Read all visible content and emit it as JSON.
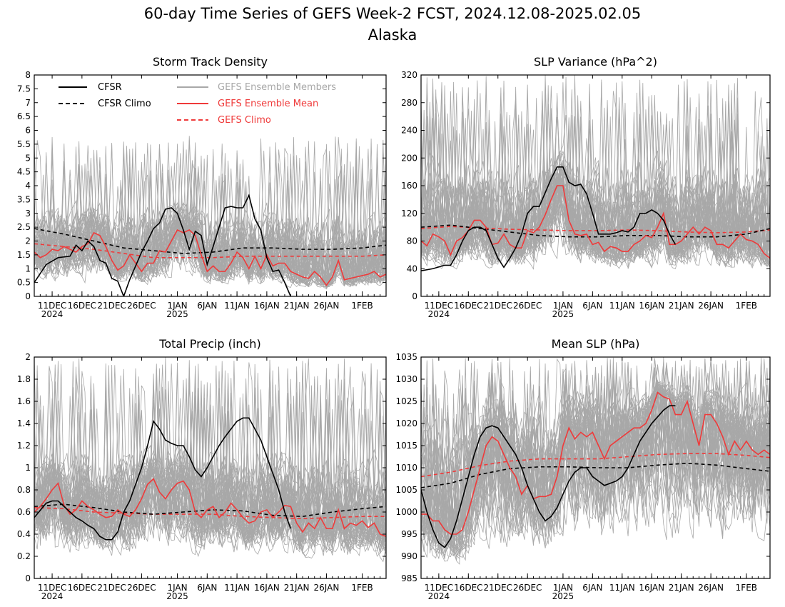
{
  "page": {
    "title_line1": "60-day Time Series of GEFS Week-2 FCST, 2024.12.08-2025.02.05",
    "title_line2": "Alaska"
  },
  "colors": {
    "members": "#a8a8a8",
    "ens_mean": "#ef3a3a",
    "gefs_climo": "#ef3a3a",
    "cfsr": "#000000",
    "cfsr_climo": "#000000"
  },
  "legend": {
    "cfsr": "CFSR",
    "cfsr_climo": "CFSR Climo",
    "members": "GEFS Ensemble Members",
    "ens_mean": "GEFS Ensemble Mean",
    "gefs_climo": "GEFS Climo"
  },
  "x_axis": {
    "ticks": [
      {
        "label": "11DEC",
        "sub": "2024",
        "day": 3
      },
      {
        "label": "16DEC",
        "day": 8
      },
      {
        "label": "21DEC",
        "day": 13
      },
      {
        "label": "26DEC",
        "day": 18
      },
      {
        "label": "1JAN",
        "sub": "2025",
        "day": 24
      },
      {
        "label": "6JAN",
        "day": 29
      },
      {
        "label": "11JAN",
        "day": 34
      },
      {
        "label": "16JAN",
        "day": 39
      },
      {
        "label": "21JAN",
        "day": 44
      },
      {
        "label": "26JAN",
        "day": 49
      },
      {
        "label": "1FEB",
        "day": 55
      }
    ]
  },
  "chart_data": [
    {
      "id": "storm-track",
      "type": "line",
      "title": "Storm Track Density",
      "xlim": [
        0,
        59
      ],
      "ylim": [
        0,
        8
      ],
      "yticks": [
        0,
        0.5,
        1,
        1.5,
        2,
        2.5,
        3,
        3.5,
        4,
        4.5,
        5,
        5.5,
        6,
        6.5,
        7,
        7.5,
        8
      ],
      "cfsr": {
        "x": [
          0,
          2,
          4,
          6,
          7,
          8,
          9,
          10,
          11,
          12,
          13,
          14,
          15,
          16,
          18,
          19,
          20,
          21,
          22,
          23,
          24,
          25,
          26,
          27,
          28,
          29,
          30,
          31,
          32,
          33,
          34,
          35,
          36,
          37,
          38,
          39,
          40,
          41,
          42,
          43
        ],
        "y": [
          0.5,
          1.15,
          1.4,
          1.45,
          1.85,
          1.65,
          2.0,
          1.8,
          1.3,
          1.2,
          0.65,
          0.55,
          0.0,
          0.6,
          1.6,
          2.0,
          2.45,
          2.65,
          3.15,
          3.2,
          3.0,
          2.4,
          1.7,
          2.35,
          2.2,
          1.15,
          1.8,
          2.5,
          3.2,
          3.25,
          3.2,
          3.2,
          3.65,
          2.8,
          2.4,
          1.4,
          0.9,
          0.95,
          0.5,
          0.0
        ]
      },
      "cfsr_climo": {
        "x": [
          0,
          5,
          10,
          15,
          20,
          25,
          30,
          35,
          40,
          45,
          50,
          55,
          59
        ],
        "y": [
          2.45,
          2.25,
          2.0,
          1.75,
          1.65,
          1.55,
          1.6,
          1.75,
          1.75,
          1.7,
          1.7,
          1.75,
          1.85
        ]
      },
      "ens_mean": {
        "x": [
          0,
          1,
          2,
          3,
          4,
          5,
          6,
          7,
          8,
          9,
          10,
          11,
          12,
          13,
          14,
          15,
          16,
          17,
          18,
          19,
          20,
          21,
          22,
          23,
          24,
          25,
          26,
          27,
          28,
          29,
          30,
          31,
          32,
          33,
          34,
          35,
          36,
          37,
          38,
          39,
          40,
          41,
          42,
          43,
          44,
          45,
          46,
          47,
          48,
          49,
          50,
          51,
          52,
          53,
          54,
          55,
          56,
          57,
          58,
          59
        ],
        "y": [
          1.6,
          1.4,
          1.5,
          1.7,
          1.65,
          1.8,
          1.7,
          1.6,
          1.8,
          1.9,
          2.3,
          2.2,
          1.8,
          1.3,
          0.95,
          1.1,
          1.5,
          1.2,
          0.9,
          1.2,
          1.2,
          1.65,
          1.6,
          2.0,
          2.4,
          2.3,
          2.4,
          2.2,
          1.5,
          0.9,
          1.1,
          0.9,
          0.9,
          1.2,
          1.6,
          1.4,
          1.0,
          1.45,
          1.0,
          1.5,
          1.1,
          1.2,
          1.2,
          0.9,
          0.8,
          0.7,
          0.65,
          0.9,
          0.7,
          0.4,
          0.7,
          1.3,
          0.6,
          0.65,
          0.7,
          0.75,
          0.8,
          0.9,
          0.7,
          0.8
        ]
      },
      "gefs_climo": {
        "x": [
          0,
          5,
          10,
          15,
          20,
          25,
          30,
          35,
          40,
          45,
          50,
          55,
          59
        ],
        "y": [
          1.9,
          1.8,
          1.7,
          1.55,
          1.4,
          1.4,
          1.4,
          1.45,
          1.45,
          1.45,
          1.45,
          1.45,
          1.5
        ]
      },
      "members": {
        "count": 50,
        "spread_low": 0.2,
        "spread_high": 3.8,
        "cap": 5.8
      }
    },
    {
      "id": "slp-variance",
      "type": "line",
      "title": "SLP Variance (hPa^2)",
      "xlim": [
        0,
        59
      ],
      "ylim": [
        0,
        320
      ],
      "yticks": [
        0,
        40,
        80,
        120,
        160,
        200,
        240,
        280,
        320
      ],
      "cfsr": {
        "x": [
          0,
          2,
          4,
          5,
          6,
          7,
          8,
          9,
          10,
          11,
          12,
          13,
          14,
          15,
          16,
          17,
          18,
          19,
          20,
          21,
          22,
          23,
          24,
          25,
          26,
          27,
          28,
          29,
          30,
          31,
          32,
          33,
          34,
          35,
          36,
          37,
          38,
          39,
          40,
          41,
          42,
          43
        ],
        "y": [
          37,
          40,
          45,
          45,
          60,
          80,
          95,
          100,
          100,
          95,
          75,
          55,
          42,
          55,
          70,
          90,
          120,
          130,
          130,
          150,
          170,
          187,
          187,
          165,
          160,
          162,
          148,
          120,
          90,
          90,
          90,
          92,
          95,
          93,
          100,
          120,
          120,
          125,
          120,
          110,
          90,
          75
        ]
      },
      "cfsr_climo": {
        "x": [
          0,
          5,
          10,
          15,
          20,
          25,
          30,
          35,
          40,
          45,
          50,
          55,
          59
        ],
        "y": [
          100,
          103,
          98,
          93,
          88,
          86,
          86,
          88,
          88,
          86,
          86,
          90,
          98
        ]
      },
      "ens_mean": {
        "x": [
          0,
          1,
          2,
          3,
          4,
          5,
          6,
          7,
          8,
          9,
          10,
          11,
          12,
          13,
          14,
          15,
          16,
          17,
          18,
          19,
          20,
          21,
          22,
          23,
          24,
          25,
          26,
          27,
          28,
          29,
          30,
          31,
          32,
          33,
          34,
          35,
          36,
          37,
          38,
          39,
          40,
          41,
          42,
          43,
          44,
          45,
          46,
          47,
          48,
          49,
          50,
          51,
          52,
          53,
          54,
          55,
          56,
          57,
          58,
          59
        ],
        "y": [
          80,
          73,
          90,
          86,
          80,
          60,
          80,
          85,
          95,
          110,
          110,
          100,
          75,
          77,
          90,
          75,
          70,
          70,
          95,
          92,
          100,
          118,
          140,
          160,
          160,
          110,
          90,
          88,
          90,
          75,
          78,
          65,
          72,
          70,
          65,
          65,
          75,
          80,
          88,
          85,
          100,
          120,
          75,
          75,
          80,
          90,
          100,
          90,
          100,
          95,
          75,
          75,
          70,
          80,
          90,
          82,
          80,
          75,
          62,
          55
        ]
      },
      "gefs_climo": {
        "x": [
          0,
          5,
          10,
          15,
          20,
          25,
          30,
          35,
          40,
          45,
          50,
          55,
          59
        ],
        "y": [
          98,
          101,
          99,
          97,
          96,
          95,
          95,
          96,
          95,
          93,
          92,
          93,
          96
        ]
      },
      "members": {
        "count": 50,
        "spread_low": 30,
        "spread_high": 230,
        "cap": 320
      }
    },
    {
      "id": "total-precip",
      "type": "line",
      "title": "Total Precip (inch)",
      "xlim": [
        0,
        59
      ],
      "ylim": [
        0,
        2
      ],
      "yticks": [
        0,
        0.2,
        0.4,
        0.6,
        0.8,
        1,
        1.2,
        1.4,
        1.6,
        1.8,
        2
      ],
      "cfsr": {
        "x": [
          0,
          2,
          3,
          4,
          5,
          6,
          7,
          8,
          9,
          10,
          11,
          12,
          13,
          14,
          15,
          16,
          17,
          18,
          19,
          20,
          21,
          22,
          23,
          24,
          25,
          26,
          27,
          28,
          29,
          30,
          31,
          32,
          33,
          34,
          35,
          36,
          37,
          38,
          39,
          40,
          41,
          42,
          43
        ],
        "y": [
          0.55,
          0.68,
          0.7,
          0.7,
          0.65,
          0.6,
          0.55,
          0.52,
          0.48,
          0.45,
          0.38,
          0.35,
          0.35,
          0.42,
          0.6,
          0.7,
          0.85,
          1.0,
          1.2,
          1.42,
          1.35,
          1.25,
          1.22,
          1.2,
          1.2,
          1.1,
          0.98,
          0.92,
          1.0,
          1.1,
          1.2,
          1.28,
          1.35,
          1.42,
          1.45,
          1.45,
          1.35,
          1.25,
          1.1,
          0.95,
          0.8,
          0.6,
          0.45
        ]
      },
      "cfsr_climo": {
        "x": [
          0,
          5,
          10,
          15,
          20,
          25,
          30,
          35,
          40,
          45,
          50,
          55,
          59
        ],
        "y": [
          0.65,
          0.67,
          0.64,
          0.6,
          0.58,
          0.6,
          0.62,
          0.61,
          0.57,
          0.56,
          0.6,
          0.63,
          0.65
        ]
      },
      "ens_mean": {
        "x": [
          0,
          1,
          2,
          3,
          4,
          5,
          6,
          7,
          8,
          9,
          10,
          11,
          12,
          13,
          14,
          15,
          16,
          17,
          18,
          19,
          20,
          21,
          22,
          23,
          24,
          25,
          26,
          27,
          28,
          29,
          30,
          31,
          32,
          33,
          34,
          35,
          36,
          37,
          38,
          39,
          40,
          41,
          42,
          43,
          44,
          45,
          46,
          47,
          48,
          49,
          50,
          51,
          52,
          53,
          54,
          55,
          56,
          57,
          58,
          59
        ],
        "y": [
          0.6,
          0.65,
          0.72,
          0.8,
          0.86,
          0.66,
          0.58,
          0.62,
          0.7,
          0.65,
          0.62,
          0.58,
          0.55,
          0.56,
          0.62,
          0.58,
          0.56,
          0.62,
          0.72,
          0.85,
          0.9,
          0.78,
          0.72,
          0.8,
          0.86,
          0.88,
          0.8,
          0.6,
          0.55,
          0.62,
          0.65,
          0.55,
          0.6,
          0.68,
          0.62,
          0.55,
          0.5,
          0.52,
          0.6,
          0.62,
          0.55,
          0.6,
          0.66,
          0.65,
          0.5,
          0.42,
          0.5,
          0.45,
          0.55,
          0.45,
          0.45,
          0.62,
          0.45,
          0.5,
          0.48,
          0.52,
          0.46,
          0.5,
          0.4,
          0.38
        ]
      },
      "gefs_climo": {
        "x": [
          0,
          5,
          10,
          15,
          20,
          25,
          30,
          35,
          40,
          45,
          50,
          55,
          59
        ],
        "y": [
          0.64,
          0.63,
          0.6,
          0.59,
          0.58,
          0.58,
          0.58,
          0.56,
          0.55,
          0.54,
          0.55,
          0.56,
          0.56
        ]
      },
      "members": {
        "count": 50,
        "spread_low": 0.1,
        "spread_high": 1.3,
        "cap": 2.0
      }
    },
    {
      "id": "mean-slp",
      "type": "line",
      "title": "Mean SLP (hPa)",
      "xlim": [
        0,
        59
      ],
      "ylim": [
        985,
        1035
      ],
      "yticks": [
        985,
        990,
        995,
        1000,
        1005,
        1010,
        1015,
        1020,
        1025,
        1030,
        1035
      ],
      "cfsr": {
        "x": [
          0,
          1,
          2,
          3,
          4,
          5,
          6,
          7,
          8,
          9,
          10,
          11,
          12,
          13,
          14,
          15,
          16,
          17,
          18,
          19,
          20,
          21,
          22,
          23,
          24,
          25,
          26,
          27,
          28,
          29,
          30,
          31,
          32,
          33,
          34,
          35,
          36,
          37,
          38,
          39,
          40,
          41,
          42,
          43
        ],
        "y": [
          1005,
          1000,
          996,
          993,
          992,
          994,
          998,
          1003,
          1008,
          1013,
          1017,
          1019,
          1019.5,
          1019,
          1017,
          1015,
          1013,
          1010,
          1006,
          1003,
          1000,
          998,
          999,
          1001,
          1004,
          1007,
          1009,
          1010,
          1010,
          1008,
          1007,
          1006,
          1006.5,
          1007,
          1008,
          1010,
          1013,
          1016,
          1018,
          1020,
          1021.5,
          1023,
          1024,
          1024
        ]
      },
      "cfsr_climo": {
        "x": [
          0,
          5,
          10,
          15,
          20,
          25,
          30,
          35,
          40,
          45,
          50,
          55,
          59
        ],
        "y": [
          1005.5,
          1006.5,
          1008.5,
          1009.8,
          1010.2,
          1010.2,
          1010,
          1010,
          1010.6,
          1011,
          1010.6,
          1009.8,
          1009.2
        ]
      },
      "ens_mean": {
        "x": [
          0,
          1,
          2,
          3,
          4,
          5,
          6,
          7,
          8,
          9,
          10,
          11,
          12,
          13,
          14,
          15,
          16,
          17,
          18,
          19,
          20,
          21,
          22,
          23,
          24,
          25,
          26,
          27,
          28,
          29,
          30,
          31,
          32,
          33,
          34,
          35,
          36,
          37,
          38,
          39,
          40,
          41,
          42,
          43,
          44,
          45,
          46,
          47,
          48,
          49,
          50,
          51,
          52,
          53,
          54,
          55,
          56,
          57,
          58,
          59
        ],
        "y": [
          999.5,
          999.5,
          998,
          998,
          996,
          995,
          995,
          996,
          1000,
          1005,
          1010,
          1015,
          1017,
          1016,
          1013,
          1010,
          1008,
          1004,
          1006,
          1003,
          1003.5,
          1003.5,
          1004,
          1008,
          1015,
          1019,
          1016.5,
          1018,
          1017,
          1018,
          1015,
          1012,
          1015,
          1016,
          1017,
          1018,
          1019,
          1019,
          1020,
          1023,
          1027,
          1026,
          1025.5,
          1022,
          1022,
          1025,
          1020,
          1015,
          1022,
          1022,
          1020,
          1017,
          1013,
          1016,
          1014,
          1016,
          1014,
          1013,
          1014,
          1013
        ]
      },
      "gefs_climo": {
        "x": [
          0,
          5,
          10,
          15,
          20,
          25,
          30,
          35,
          40,
          45,
          50,
          55,
          59
        ],
        "y": [
          1008,
          1009,
          1010.5,
          1011.5,
          1012,
          1012,
          1012,
          1012.5,
          1013,
          1013.2,
          1013.2,
          1012.8,
          1012.3
        ]
      },
      "members": {
        "count": 50,
        "spread_low": 986,
        "spread_high": 1031,
        "cap": 1035
      }
    }
  ]
}
